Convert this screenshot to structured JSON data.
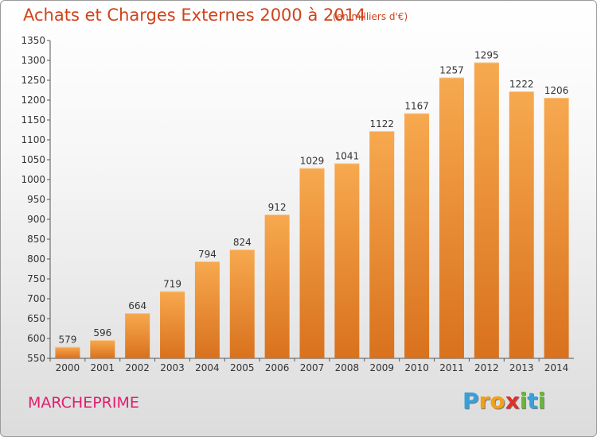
{
  "header": {
    "title": "Achats et Charges Externes 2000 à 2014",
    "subtitle": "(en milliers d'€)"
  },
  "footer": {
    "place": "MARCHEPRIME",
    "logo_letters": [
      "P",
      "r",
      "o",
      "x",
      "i",
      "t",
      "i"
    ],
    "logo_colors": [
      "#3aa0d8",
      "#f0a11c",
      "#f0a11c",
      "#e0302a",
      "#6cb33f",
      "#3aa0d8",
      "#6cb33f"
    ]
  },
  "chart_data": {
    "type": "bar",
    "title": "Achats et Charges Externes 2000 à 2014",
    "subtitle": "(en milliers d'€)",
    "categories": [
      "2000",
      "2001",
      "2002",
      "2003",
      "2004",
      "2005",
      "2006",
      "2007",
      "2008",
      "2009",
      "2010",
      "2011",
      "2012",
      "2013",
      "2014"
    ],
    "values": [
      579,
      596,
      664,
      719,
      794,
      824,
      912,
      1029,
      1041,
      1122,
      1167,
      1257,
      1295,
      1222,
      1206
    ],
    "ylim": [
      550,
      1350
    ],
    "yticks": [
      550,
      600,
      650,
      700,
      750,
      800,
      850,
      900,
      950,
      1000,
      1050,
      1100,
      1150,
      1200,
      1250,
      1300,
      1350
    ],
    "grid": false,
    "bar_color_top": "#f7a94f",
    "bar_color_bottom": "#d9711d"
  }
}
